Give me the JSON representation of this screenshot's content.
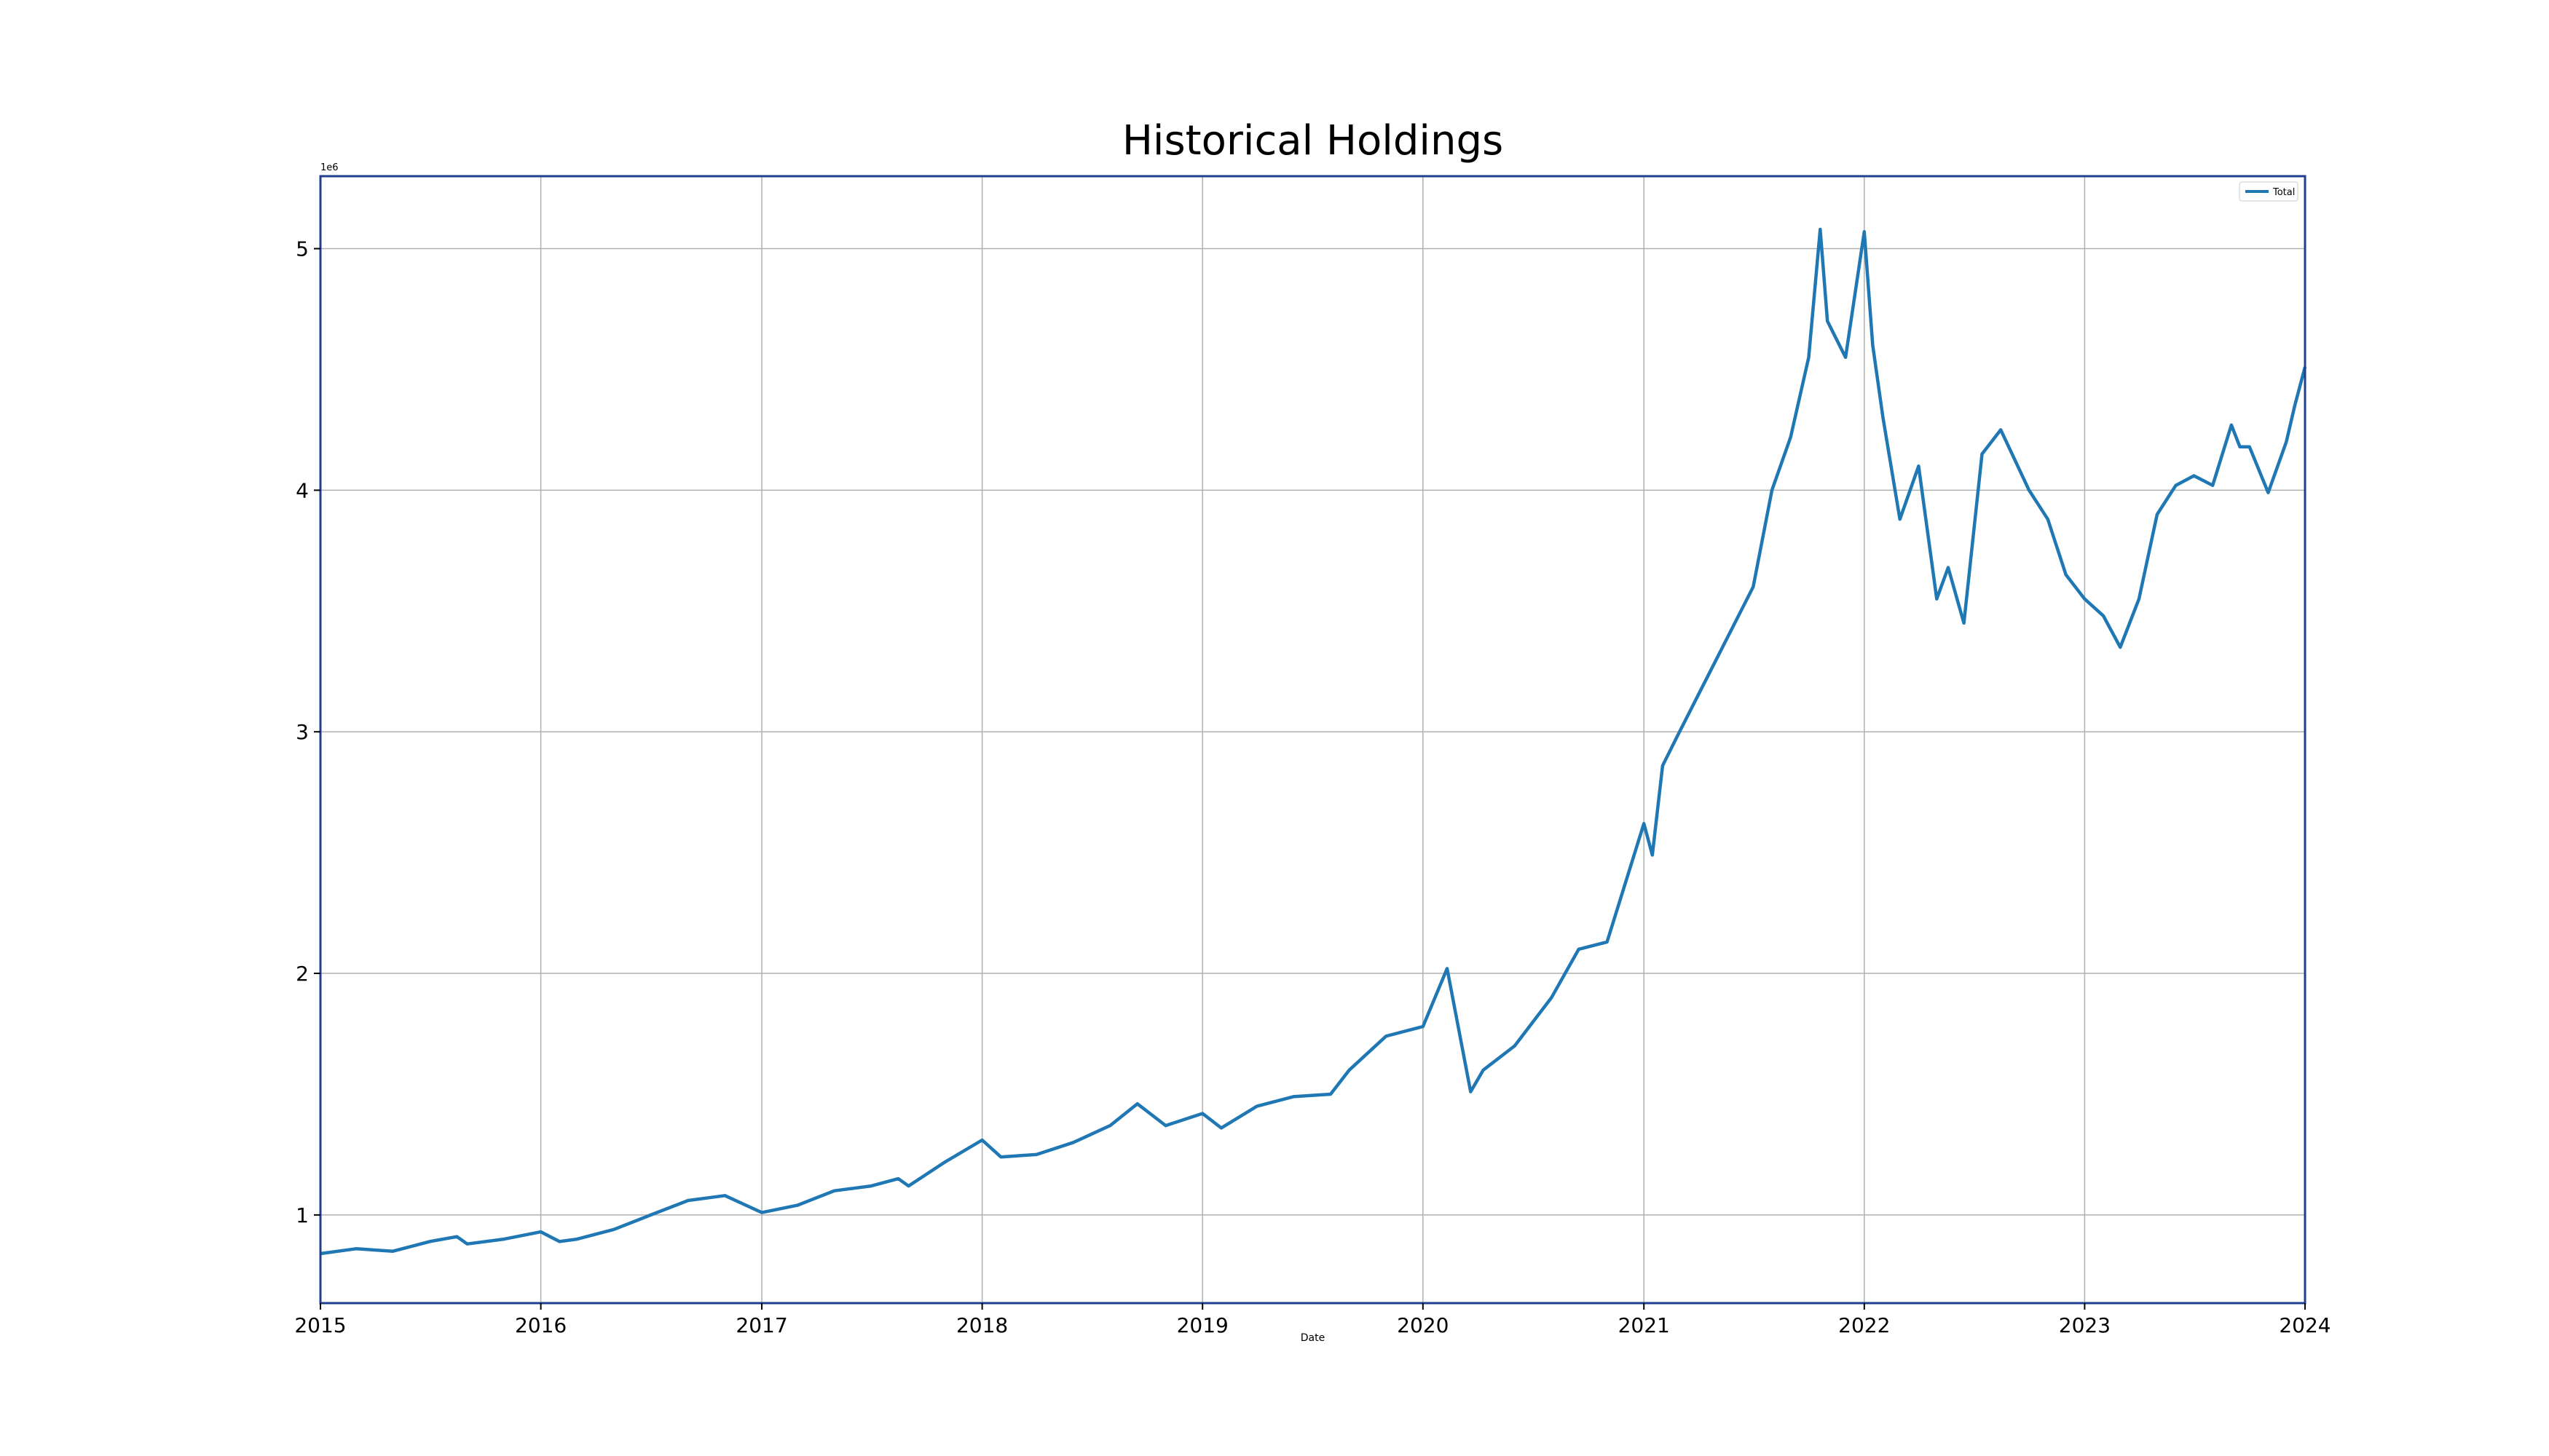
{
  "chart_data": {
    "type": "line",
    "title": "Historical Holdings",
    "xlabel": "Date",
    "ylabel": "",
    "y_offset_label": "1e6",
    "xlim": [
      "2015-01-01",
      "2024-01-01"
    ],
    "ylim": [
      0.635,
      5.3
    ],
    "x_ticks": [
      "2015",
      "2016",
      "2017",
      "2018",
      "2019",
      "2020",
      "2021",
      "2022",
      "2023",
      "2024"
    ],
    "y_ticks": [
      1,
      2,
      3,
      4,
      5
    ],
    "grid": true,
    "legend": "top-right",
    "colors": {
      "line": "#1f77b4",
      "frame": "#1f3f8f",
      "grid": "#b0b0b0"
    },
    "series": [
      {
        "name": "Total",
        "x": [
          "2015-01-01",
          "2015-03-01",
          "2015-05-01",
          "2015-07-01",
          "2015-08-15",
          "2015-09-01",
          "2015-11-01",
          "2016-01-01",
          "2016-02-01",
          "2016-03-01",
          "2016-05-01",
          "2016-07-01",
          "2016-09-01",
          "2016-11-01",
          "2017-01-01",
          "2017-03-01",
          "2017-05-01",
          "2017-07-01",
          "2017-08-15",
          "2017-09-01",
          "2017-11-01",
          "2018-01-01",
          "2018-02-01",
          "2018-04-01",
          "2018-06-01",
          "2018-08-01",
          "2018-09-15",
          "2018-11-01",
          "2019-01-01",
          "2019-02-01",
          "2019-04-01",
          "2019-06-01",
          "2019-08-01",
          "2019-09-01",
          "2019-11-01",
          "2020-01-01",
          "2020-02-10",
          "2020-03-20",
          "2020-04-10",
          "2020-06-01",
          "2020-08-01",
          "2020-09-15",
          "2020-11-01",
          "2021-01-01",
          "2021-01-15",
          "2021-02-01",
          "2021-03-01",
          "2021-05-01",
          "2021-07-01",
          "2021-08-01",
          "2021-09-01",
          "2021-10-01",
          "2021-10-20",
          "2021-11-01",
          "2021-12-01",
          "2022-01-01",
          "2022-01-15",
          "2022-02-01",
          "2022-03-01",
          "2022-04-01",
          "2022-05-01",
          "2022-05-20",
          "2022-06-15",
          "2022-07-15",
          "2022-08-15",
          "2022-10-01",
          "2022-11-01",
          "2022-12-01",
          "2023-01-01",
          "2023-02-01",
          "2023-03-01",
          "2023-04-01",
          "2023-05-01",
          "2023-06-01",
          "2023-07-01",
          "2023-08-01",
          "2023-09-01",
          "2023-09-15",
          "2023-10-01",
          "2023-11-01",
          "2023-12-01",
          "2023-12-15",
          "2024-01-01"
        ],
        "values": [
          0.84,
          0.86,
          0.85,
          0.89,
          0.91,
          0.88,
          0.9,
          0.93,
          0.89,
          0.9,
          0.94,
          1.0,
          1.06,
          1.08,
          1.01,
          1.04,
          1.1,
          1.12,
          1.15,
          1.12,
          1.22,
          1.31,
          1.24,
          1.25,
          1.3,
          1.37,
          1.46,
          1.37,
          1.42,
          1.36,
          1.45,
          1.49,
          1.5,
          1.6,
          1.74,
          1.78,
          2.02,
          1.51,
          1.6,
          1.7,
          1.9,
          2.1,
          2.13,
          2.62,
          2.49,
          2.86,
          3.0,
          3.3,
          3.6,
          4.0,
          4.22,
          4.55,
          5.08,
          4.7,
          4.55,
          5.07,
          4.6,
          4.3,
          3.88,
          4.1,
          3.55,
          3.68,
          3.45,
          4.15,
          4.25,
          4.0,
          3.88,
          3.65,
          3.55,
          3.48,
          3.35,
          3.55,
          3.9,
          4.02,
          4.06,
          4.02,
          4.27,
          4.18,
          4.18,
          3.99,
          4.2,
          4.35,
          4.51
        ]
      }
    ]
  }
}
